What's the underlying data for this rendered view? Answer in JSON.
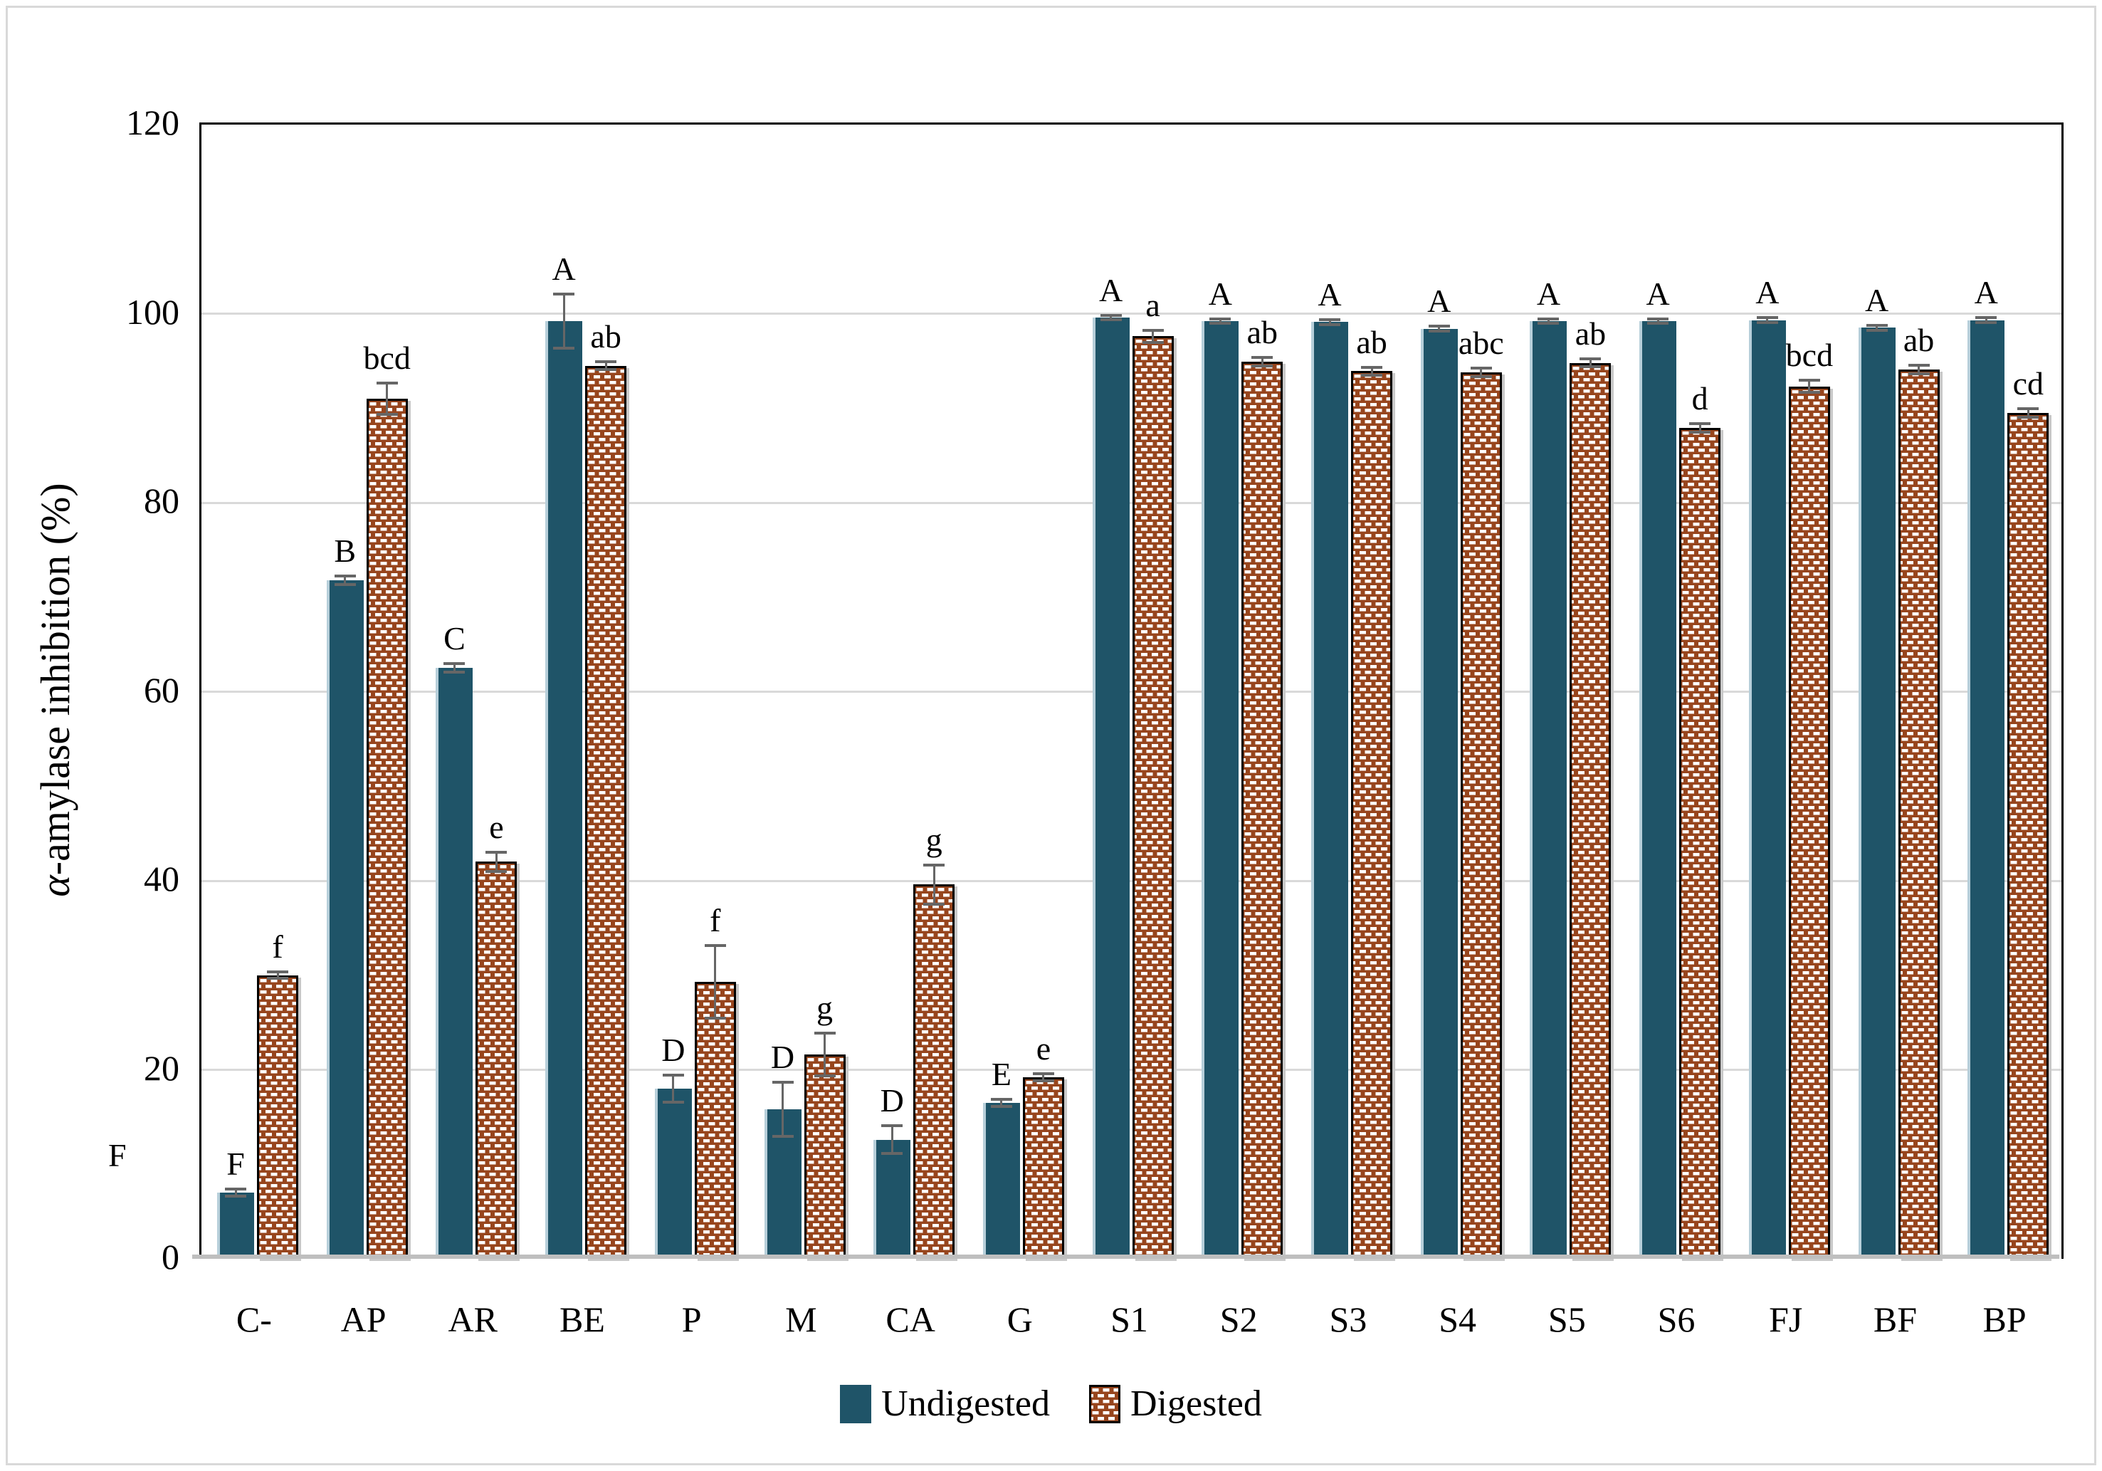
{
  "y_axis": {
    "title_alpha": "α",
    "title_rest": "-amylase inhibition (%)",
    "ticks": [
      0,
      20,
      40,
      60,
      80,
      100,
      120
    ]
  },
  "stray_label": "F",
  "colors": {
    "undigested_fill": "#1F5468",
    "undigested_edge": "#B7CFDA",
    "digested_fill": "#97451D",
    "pattern_dash": "#FFFFFF",
    "bar_outline": "#000000",
    "gridline": "#D9D9D9",
    "axis_baseline": "#BFBFBF",
    "error_bar": "#666666",
    "frame_border": "#D9D9D9",
    "text": "#000000"
  },
  "legend": {
    "undigested_label": "Undigested",
    "digested_label": "Digested"
  },
  "chart_data": {
    "type": "bar",
    "title": "",
    "xlabel": "",
    "ylabel": "α-amylase inhibition (%)",
    "ylim": [
      0,
      120
    ],
    "yticks": [
      0,
      20,
      40,
      60,
      80,
      100,
      120
    ],
    "grid": true,
    "legend_position": "bottom",
    "categories": [
      "C-",
      "AP",
      "AR",
      "BE",
      "P",
      "M",
      "CA",
      "G",
      "S1",
      "S2",
      "S3",
      "S4",
      "S5",
      "S6",
      "FJ",
      "BF",
      "BP"
    ],
    "series": [
      {
        "name": "Undigested",
        "style": "solid",
        "color": "#1F5468",
        "values": [
          7,
          71.8,
          62.5,
          99.2,
          18,
          15.8,
          12.6,
          16.5,
          99.6,
          99.2,
          99.1,
          98.4,
          99.2,
          99.2,
          99.3,
          98.5,
          99.3
        ],
        "errors": [
          0.5,
          0.6,
          0.6,
          3,
          1.6,
          3,
          1.6,
          0.5,
          0.4,
          0.4,
          0.4,
          0.4,
          0.4,
          0.4,
          0.4,
          0.4,
          0.4
        ],
        "sig_letters": [
          "F",
          "B",
          "C",
          "A",
          "D",
          "D",
          "D",
          "E",
          "A",
          "A",
          "A",
          "A",
          "A",
          "A",
          "A",
          "A",
          "A"
        ]
      },
      {
        "name": "Digested",
        "style": "brick-pattern",
        "color": "#97451D",
        "values": [
          30,
          91,
          42,
          94.5,
          29.3,
          21.6,
          39.6,
          19.2,
          97.6,
          94.9,
          93.9,
          93.8,
          94.8,
          87.9,
          92.3,
          94.1,
          89.5
        ],
        "errors": [
          0.5,
          1.8,
          1.2,
          0.6,
          4,
          2.4,
          2.2,
          0.5,
          0.8,
          0.6,
          0.6,
          0.6,
          0.6,
          0.6,
          0.8,
          0.6,
          0.6
        ],
        "sig_letters": [
          "f",
          "bcd",
          "e",
          "ab",
          "f",
          "g",
          "g",
          "e",
          "a",
          "ab",
          "ab",
          "abc",
          "ab",
          "d",
          "bcd",
          "ab",
          "cd"
        ]
      }
    ]
  }
}
